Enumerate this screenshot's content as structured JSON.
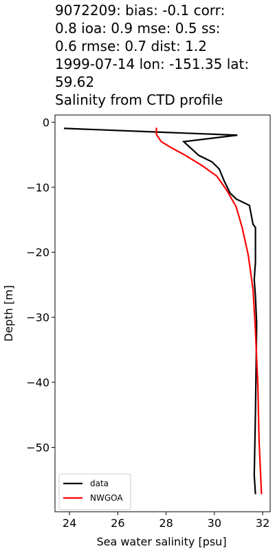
{
  "chart_data": {
    "type": "line",
    "title": [
      "9072209: bias: -0.1  corr:",
      "0.8  ioa: 0.9  mse: 0.5  ss:",
      "0.6  rmse: 0.7  dist: 1.2",
      "1999-07-14 lon: -151.35 lat:",
      "59.62",
      "Salinity from CTD profile"
    ],
    "xlabel": "Sea water salinity [psu]",
    "ylabel": "Depth [m]",
    "xlim": [
      23.4,
      32.31
    ],
    "ylim": [
      -59.9,
      1.1
    ],
    "xticks": [
      24,
      26,
      28,
      30,
      32
    ],
    "yticks": [
      0,
      {
        "value": -10,
        "label": "−10"
      },
      {
        "value": -20,
        "label": "−20"
      },
      {
        "value": -30,
        "label": "−30"
      },
      {
        "value": -40,
        "label": "−40"
      },
      {
        "value": -50,
        "label": "−50"
      }
    ],
    "legend": "lower left",
    "series": [
      {
        "name": "data",
        "color": "#000000",
        "x": [
          23.77,
          30.95,
          28.73,
          29.35,
          29.9,
          30.2,
          30.4,
          30.65,
          30.9,
          31.45,
          31.6,
          31.7,
          31.7,
          31.65,
          31.7,
          31.75,
          31.7,
          31.65,
          31.7
        ],
        "values": [
          -0.95,
          -2.0,
          -3.0,
          -5.1,
          -6.1,
          -7.2,
          -9.0,
          -10.9,
          -11.8,
          -12.8,
          -15.7,
          -16.2,
          -21.5,
          -24.2,
          -26.8,
          -31.0,
          -44.8,
          -54.3,
          -57.2
        ]
      },
      {
        "name": "NWGOA",
        "color": "#ff0000",
        "x": [
          27.6,
          27.6,
          27.8,
          28.25,
          28.8,
          29.5,
          30.1,
          30.5,
          30.9,
          31.15,
          31.4,
          31.6,
          31.7,
          31.8,
          31.85,
          31.95
        ],
        "values": [
          -0.85,
          -1.9,
          -3.0,
          -4.0,
          -5.1,
          -6.7,
          -8.3,
          -10.4,
          -13.0,
          -16.2,
          -20.4,
          -25.7,
          -32.1,
          -40.6,
          -49.0,
          -57.2
        ]
      }
    ]
  }
}
